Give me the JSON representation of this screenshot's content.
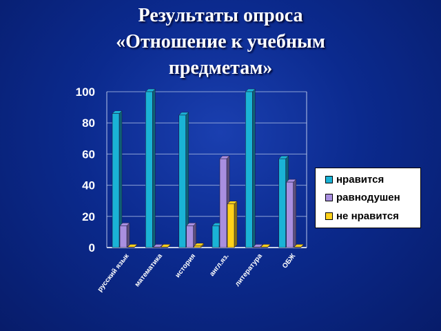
{
  "title": {
    "line1": "Результаты опроса",
    "line2": "«Отношение к учебным",
    "line3": "предметам»"
  },
  "colors": {
    "background": "#0b2a8e",
    "likes": "#1ab3d6",
    "indifferent": "#a98fe0",
    "dislikes": "#ffd21a"
  },
  "chart_data": {
    "type": "bar",
    "categories": [
      "русский язык",
      "математика",
      "история",
      "англ.яз.",
      "литература",
      "ОБЖ"
    ],
    "series": [
      {
        "name": "нравится",
        "values": [
          86,
          100,
          85,
          14,
          100,
          57
        ]
      },
      {
        "name": "равнодушен",
        "values": [
          14,
          0,
          14,
          57,
          0,
          42
        ]
      },
      {
        "name": "не нравится",
        "values": [
          0,
          0,
          1,
          28,
          0,
          0
        ]
      }
    ],
    "ylim": [
      0,
      100
    ],
    "yticks": [
      "0",
      "20",
      "40",
      "60",
      "80",
      "100"
    ],
    "grid": true,
    "legend_position": "right"
  }
}
